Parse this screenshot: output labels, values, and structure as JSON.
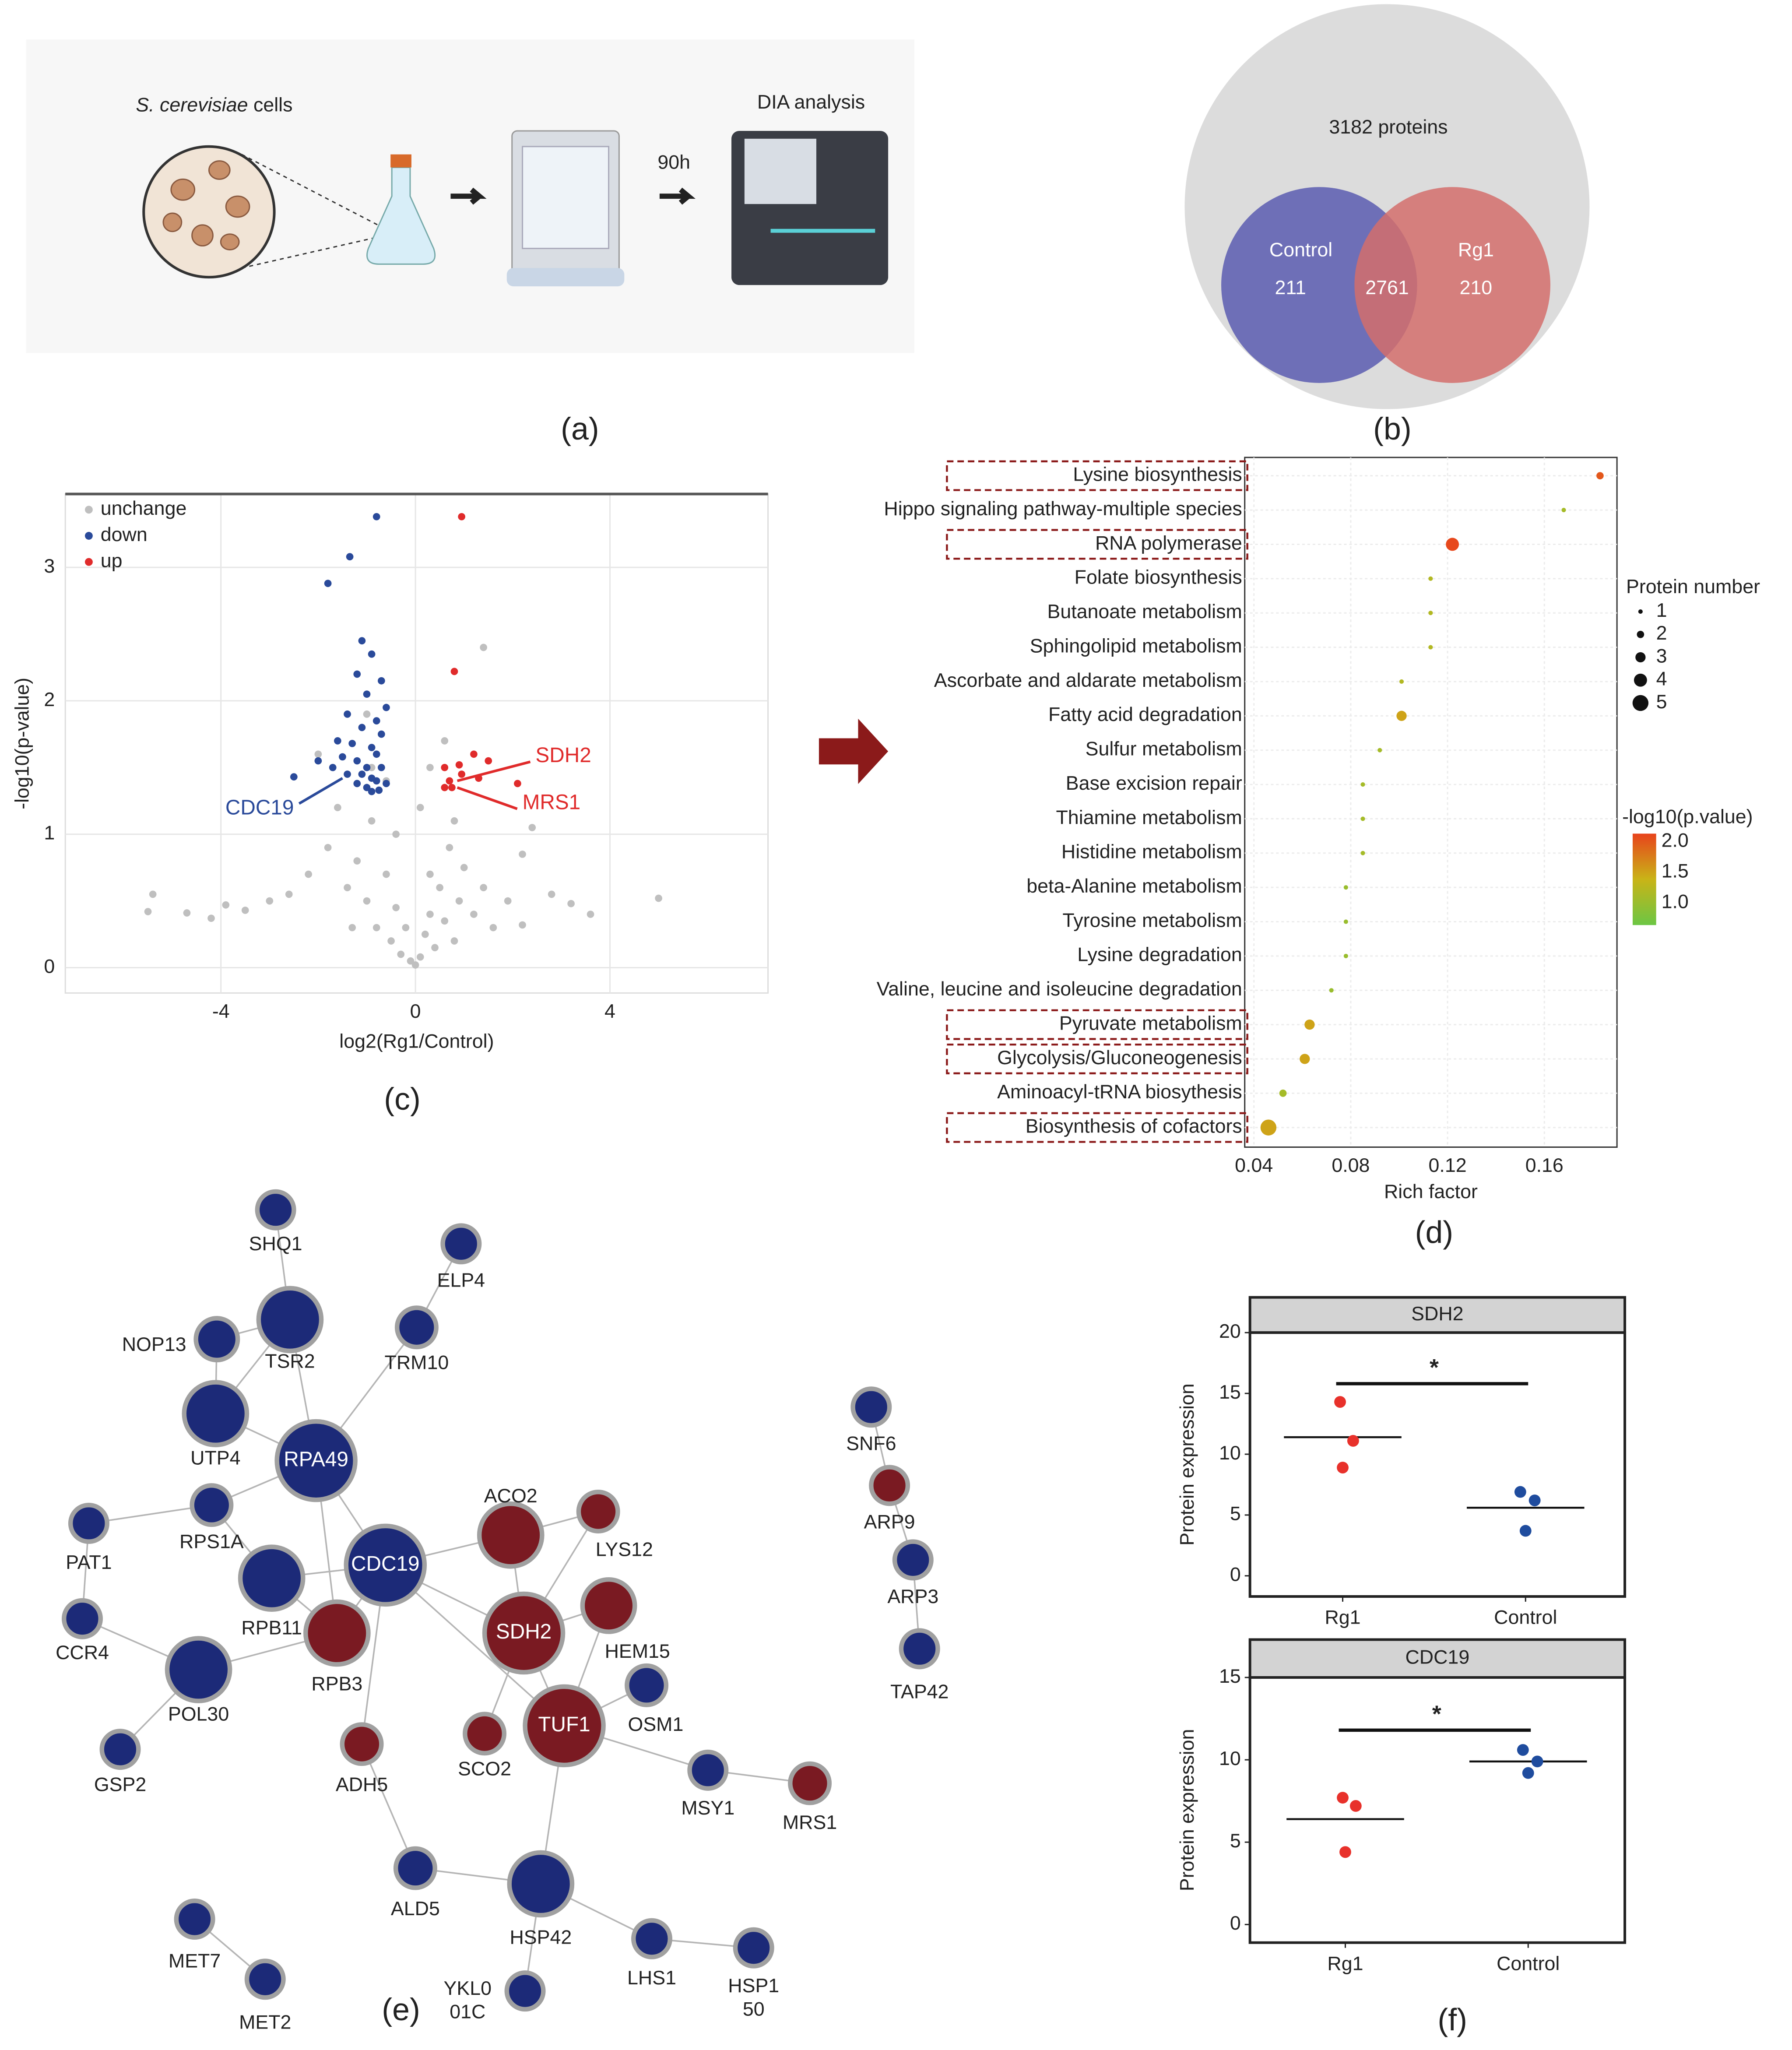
{
  "panel_labels": [
    "(a)",
    "(b)",
    "(c)",
    "(d)",
    "(e)",
    "(f)"
  ],
  "workflow": {
    "organism": "S. cerevisiae",
    "organism_suffix": "cells",
    "time": "90h",
    "analysis": "DIA analysis"
  },
  "chart_data": [
    {
      "type": "venn",
      "total": 3182,
      "total_label": "3182 proteins",
      "sets": [
        {
          "name": "Control",
          "value": 211,
          "color": "#5b5cb0"
        },
        {
          "name": "Rg1",
          "value": 210,
          "color": "#d46e6c"
        }
      ],
      "overlap": 2761
    },
    {
      "type": "scatter",
      "xlabel": "log2(Rg1/Control)",
      "ylabel": "-log10(p-value)",
      "xlim": [
        -7.2,
        7.25
      ],
      "ylim": [
        -0.19,
        3.55
      ],
      "xticks": [
        -4,
        0,
        4
      ],
      "yticks": [
        0,
        1,
        2,
        3
      ],
      "grid": true,
      "legend": "upper left",
      "series": [
        {
          "name": "unchange",
          "color": "#bfbfbf",
          "x": [
            -5.4,
            -5.5,
            -4.7,
            -4.2,
            -3.9,
            -3.5,
            -3.0,
            -2.6,
            -2.2,
            -1.8,
            -1.6,
            -1.4,
            -1.2,
            -1.0,
            -0.9,
            -0.8,
            -0.6,
            -0.5,
            -0.4,
            -0.3,
            -0.2,
            -0.1,
            0,
            0.1,
            0.2,
            0.3,
            0.4,
            0.5,
            0.6,
            0.7,
            0.8,
            0.9,
            1.0,
            1.2,
            1.4,
            1.6,
            1.9,
            2.2,
            2.4,
            2.2,
            2.8,
            3.2,
            3.6,
            5.0,
            -0.9,
            -1.0,
            0.3,
            0.6,
            -2.0,
            1.4,
            0.1,
            -0.4,
            -1.3,
            0.8,
            0.3,
            -0.6
          ],
          "y": [
            0.55,
            0.42,
            0.41,
            0.37,
            0.47,
            0.43,
            0.5,
            0.55,
            0.7,
            0.9,
            1.2,
            0.6,
            0.8,
            0.5,
            1.1,
            0.3,
            0.7,
            0.2,
            0.45,
            0.1,
            0.3,
            0.05,
            0.02,
            0.08,
            0.25,
            0.4,
            0.15,
            0.6,
            0.35,
            0.9,
            1.1,
            0.5,
            0.75,
            0.4,
            0.6,
            0.3,
            0.5,
            0.85,
            1.05,
            0.32,
            0.55,
            0.48,
            0.4,
            0.52,
            1.5,
            1.9,
            1.5,
            1.7,
            1.6,
            2.4,
            1.2,
            1.0,
            0.3,
            0.2,
            0.7,
            1.4
          ]
        },
        {
          "name": "down",
          "color": "#2a4a9a",
          "x": [
            -0.8,
            -1.35,
            -1.8,
            -1.1,
            -0.9,
            -1.2,
            -0.7,
            -1.0,
            -0.6,
            -1.4,
            -0.8,
            -1.1,
            -0.7,
            -1.6,
            -1.3,
            -0.9,
            -2.0,
            -1.5,
            -1.2,
            -0.8,
            -1.0,
            -0.7,
            -1.7,
            -1.4,
            -1.1,
            -0.9,
            -0.8,
            -1.2,
            -0.6,
            -2.5,
            -1.0,
            -0.75,
            -0.9
          ],
          "y": [
            3.38,
            3.08,
            2.88,
            2.45,
            2.35,
            2.2,
            2.15,
            2.05,
            1.95,
            1.9,
            1.85,
            1.8,
            1.75,
            1.7,
            1.68,
            1.65,
            1.55,
            1.58,
            1.55,
            1.6,
            1.5,
            1.5,
            1.5,
            1.45,
            1.45,
            1.42,
            1.4,
            1.38,
            1.38,
            1.43,
            1.35,
            1.33,
            1.32
          ]
        },
        {
          "name": "up",
          "color": "#e02b2b",
          "x": [
            0.95,
            0.8,
            0.6,
            0.9,
            1.2,
            1.5,
            0.7,
            0.95,
            0.6,
            0.75,
            2.1,
            1.3
          ],
          "y": [
            3.38,
            2.22,
            1.5,
            1.52,
            1.6,
            1.55,
            1.4,
            1.45,
            1.35,
            1.35,
            1.38,
            1.42
          ]
        }
      ],
      "annotations": [
        {
          "text": "SDH2",
          "x": 0.86,
          "y": 1.4,
          "color": "#e02b2b"
        },
        {
          "text": "MRS1",
          "x": 0.86,
          "y": 1.35,
          "color": "#e02b2b"
        },
        {
          "text": "CDC19",
          "x": -1.5,
          "y": 1.42,
          "color": "#2a4a9a"
        }
      ]
    },
    {
      "type": "bubble",
      "xlabel": "Rich factor",
      "xlim": [
        0.0362,
        0.19
      ],
      "xticks": [
        0.04,
        0.08,
        0.12,
        0.16
      ],
      "grid": true,
      "categories": [
        "Lysine biosynthesis",
        "Hippo signaling pathway-multiple species",
        "RNA polymerase",
        "Folate biosynthesis",
        "Butanoate metabolism",
        "Sphingolipid metabolism",
        "Ascorbate and aldarate metabolism",
        "Fatty acid degradation",
        "Sulfur metabolism",
        "Base excision repair",
        "Thiamine metabolism",
        "Histidine metabolism",
        "beta-Alanine metabolism",
        "Tyrosine metabolism",
        "Lysine degradation",
        "Valine, leucine and isoleucine degradation",
        "Pyruvate metabolism",
        "Glycolysis/Gluconeogenesis",
        "Aminoacyl-tRNA biosythesis",
        "Biosynthesis of cofactors"
      ],
      "values": [
        0.183,
        0.168,
        0.122,
        0.113,
        0.113,
        0.113,
        0.101,
        0.101,
        0.092,
        0.085,
        0.085,
        0.085,
        0.078,
        0.078,
        0.078,
        0.072,
        0.063,
        0.061,
        0.052,
        0.046
      ],
      "sizes": [
        2,
        1,
        4,
        1,
        1,
        1,
        1,
        3,
        1,
        1,
        1,
        1,
        1,
        1,
        1,
        1,
        3,
        3,
        2,
        5
      ],
      "pvalues": [
        2.0,
        1.1,
        2.1,
        1.2,
        1.2,
        1.2,
        1.2,
        1.5,
        1.1,
        1.1,
        1.1,
        1.1,
        1.0,
        1.0,
        1.0,
        1.0,
        1.5,
        1.5,
        1.1,
        1.5
      ],
      "highlighted": [
        0,
        2,
        16,
        17,
        19
      ],
      "size_legend": {
        "title": "Protein number",
        "values": [
          1,
          2,
          3,
          4,
          5
        ]
      },
      "color_legend": {
        "title": "-log10(p.value)",
        "lim": [
          0.64,
          2.13
        ],
        "ticks": [
          {
            "value": 2,
            "label": "2.0"
          },
          1.5,
          {
            "value": 1,
            "label": "1.0"
          }
        ],
        "colors": [
          "#6cc644",
          "#c9b417",
          "#e8431c"
        ]
      }
    },
    {
      "type": "strip",
      "title": "SDH2",
      "ylabel": "Protein expression",
      "ylim": [
        -1.7,
        20
      ],
      "yticks": [
        0,
        5,
        10,
        15,
        20
      ],
      "series": [
        {
          "name": "Rg1",
          "color": "#e8312b",
          "values": [
            14.3,
            11.1,
            8.9
          ],
          "mean": 11.4
        },
        {
          "name": "Control",
          "color": "#1f4c9e",
          "values": [
            6.9,
            6.2,
            3.7
          ],
          "mean": 5.6
        }
      ],
      "significance": {
        "label": "*",
        "y": 15.8
      }
    },
    {
      "type": "strip",
      "title": "CDC19",
      "ylabel": "Protein expression",
      "ylim": [
        -1.1,
        15
      ],
      "yticks": [
        0,
        5,
        10,
        15
      ],
      "series": [
        {
          "name": "Rg1",
          "color": "#e8312b",
          "values": [
            7.7,
            7.2,
            4.4
          ],
          "mean": 6.4
        },
        {
          "name": "Control",
          "color": "#1f4c9e",
          "values": [
            10.6,
            9.9,
            9.2
          ],
          "mean": 9.9
        }
      ],
      "significance": {
        "label": "*",
        "y": 11.8
      }
    }
  ],
  "network": {
    "groups": {
      "up": "#7a1a22",
      "down": "#1c2a78"
    },
    "nodes": [
      {
        "label": [
          "SHQ1"
        ],
        "group": "down"
      },
      {
        "label": [
          "ELP4"
        ],
        "group": "down"
      },
      {
        "label": [
          "TSR2"
        ],
        "group": "down"
      },
      {
        "label": [
          "NOP13"
        ],
        "group": "down"
      },
      {
        "label": [
          "TRM10"
        ],
        "group": "down"
      },
      {
        "label": [
          "UTP4"
        ],
        "group": "down"
      },
      {
        "label": [
          "RPA49"
        ],
        "group": "down"
      },
      {
        "label": [
          "RPS1A"
        ],
        "group": "down"
      },
      {
        "label": [
          "PAT1"
        ],
        "group": "down"
      },
      {
        "label": [
          "CDC19"
        ],
        "group": "down"
      },
      {
        "label": [
          "RPB11"
        ],
        "group": "down"
      },
      {
        "label": [
          "ACO2"
        ],
        "group": "up"
      },
      {
        "label": [
          "LYS12"
        ],
        "group": "up"
      },
      {
        "label": [
          "SDH2"
        ],
        "group": "up"
      },
      {
        "label": [
          "HEM15"
        ],
        "group": "up"
      },
      {
        "label": [
          "CCR4"
        ],
        "group": "down"
      },
      {
        "label": [
          "RPB3"
        ],
        "group": "up"
      },
      {
        "label": [
          "POL30"
        ],
        "group": "down"
      },
      {
        "label": [
          "OSM1"
        ],
        "group": "down"
      },
      {
        "label": [
          "TUF1"
        ],
        "group": "up"
      },
      {
        "label": [
          "SCO2"
        ],
        "group": "up"
      },
      {
        "label": [
          "ADH5"
        ],
        "group": "up"
      },
      {
        "label": [
          "GSP2"
        ],
        "group": "down"
      },
      {
        "label": [
          "MSY1"
        ],
        "group": "down"
      },
      {
        "label": [
          "MRS1"
        ],
        "group": "up"
      },
      {
        "label": [
          "ALD5"
        ],
        "group": "down"
      },
      {
        "label": [
          "HSP42"
        ],
        "group": "down"
      },
      {
        "label": [
          "MET7"
        ],
        "group": "down"
      },
      {
        "label": [
          "LHS1"
        ],
        "group": "down"
      },
      {
        "label": [
          "HSP1",
          "50"
        ],
        "group": "down"
      },
      {
        "label": [
          "MET2"
        ],
        "group": "down"
      },
      {
        "label": [
          "YKL0",
          "01C"
        ],
        "group": "down"
      },
      {
        "label": [
          "SNF6"
        ],
        "group": "down"
      },
      {
        "label": [
          "ARP9"
        ],
        "group": "up"
      },
      {
        "label": [
          "ARP3"
        ],
        "group": "down"
      },
      {
        "label": [
          "TAP42"
        ],
        "group": "down"
      }
    ],
    "edges": [
      [
        0,
        2
      ],
      [
        3,
        2
      ],
      [
        2,
        5
      ],
      [
        2,
        6
      ],
      [
        3,
        5
      ],
      [
        4,
        6
      ],
      [
        1,
        4
      ],
      [
        5,
        6
      ],
      [
        7,
        6
      ],
      [
        7,
        10
      ],
      [
        8,
        7
      ],
      [
        8,
        15
      ],
      [
        15,
        17
      ],
      [
        22,
        17
      ],
      [
        17,
        16
      ],
      [
        10,
        9
      ],
      [
        6,
        9
      ],
      [
        6,
        16
      ],
      [
        10,
        16
      ],
      [
        9,
        11
      ],
      [
        9,
        13
      ],
      [
        9,
        16
      ],
      [
        21,
        9
      ],
      [
        11,
        12
      ],
      [
        11,
        13
      ],
      [
        12,
        13
      ],
      [
        13,
        14
      ],
      [
        13,
        19
      ],
      [
        13,
        20
      ],
      [
        14,
        19
      ],
      [
        18,
        19
      ],
      [
        19,
        23
      ],
      [
        23,
        24
      ],
      [
        19,
        26
      ],
      [
        21,
        25
      ],
      [
        25,
        26
      ],
      [
        26,
        28
      ],
      [
        28,
        29
      ],
      [
        26,
        31
      ],
      [
        27,
        30
      ],
      [
        32,
        33
      ],
      [
        33,
        34
      ],
      [
        34,
        35
      ],
      [
        9,
        19
      ]
    ]
  }
}
